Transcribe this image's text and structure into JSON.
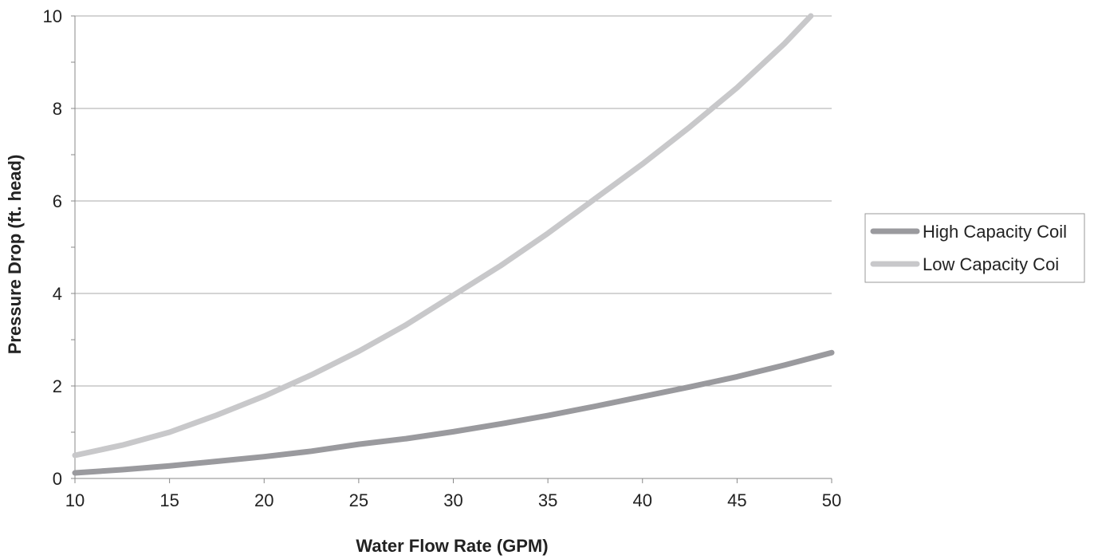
{
  "chart_data": {
    "type": "line",
    "title": "",
    "xlabel": "Water Flow Rate (GPM)",
    "ylabel": "Pressure Drop (ft. head)",
    "xlim": [
      10,
      50
    ],
    "ylim": [
      0,
      10
    ],
    "xticks": [
      "10",
      "15",
      "20",
      "25",
      "30",
      "35",
      "40",
      "45",
      "50"
    ],
    "yticks": [
      "0",
      "2",
      "4",
      "6",
      "8",
      "10"
    ],
    "grid": "horizontal",
    "legend_position": "right",
    "series": [
      {
        "name": "High Capacity Coil",
        "color": "#9a9a9e",
        "x": [
          10,
          12.5,
          15,
          17.5,
          20,
          22.5,
          25,
          27.5,
          30,
          32.5,
          35,
          37.5,
          40,
          42.5,
          45,
          47.5,
          50
        ],
        "y": [
          0.12,
          0.19,
          0.27,
          0.37,
          0.47,
          0.59,
          0.74,
          0.86,
          1.01,
          1.18,
          1.36,
          1.56,
          1.77,
          1.98,
          2.2,
          2.45,
          2.72
        ]
      },
      {
        "name": "Low Capacity Coi",
        "color": "#c8c8ca",
        "x": [
          10,
          12.5,
          15,
          17.5,
          20,
          22.5,
          25,
          27.5,
          30,
          32.5,
          35,
          37.5,
          40,
          42.5,
          45,
          47.5,
          48.9
        ],
        "y": [
          0.5,
          0.72,
          1.0,
          1.37,
          1.78,
          2.24,
          2.75,
          3.32,
          3.96,
          4.6,
          5.3,
          6.05,
          6.8,
          7.6,
          8.45,
          9.4,
          10.0
        ]
      }
    ]
  }
}
